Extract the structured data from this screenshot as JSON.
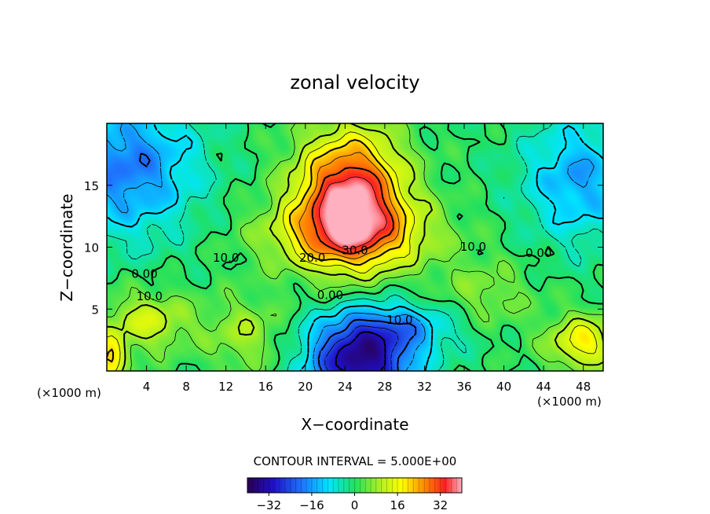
{
  "chart_data": {
    "type": "heatmap",
    "title": "zonal velocity",
    "xlabel": "X−coordinate",
    "ylabel": "Z−coordinate",
    "x_unit_left": "(×1000 m)",
    "x_unit_right": "(×1000 m)",
    "xlim": [
      0,
      50
    ],
    "ylim": [
      0,
      20
    ],
    "x_ticks": [
      4,
      8,
      12,
      16,
      20,
      24,
      28,
      32,
      36,
      40,
      44,
      48
    ],
    "x_tick_labels": [
      "4",
      "8",
      "12",
      "16",
      "20",
      "24",
      "28",
      "32",
      "36",
      "40",
      "44",
      "48"
    ],
    "y_ticks": [
      5,
      10,
      15
    ],
    "y_tick_labels": [
      "5",
      "10",
      "15"
    ],
    "contour_interval_text": "CONTOUR INTERVAL = 5.000E+00",
    "colorbar": {
      "range": [
        -40,
        40
      ],
      "ticks": [
        -32,
        -16,
        0,
        16,
        32
      ],
      "tick_labels": [
        "−32",
        "−16",
        "0",
        "16",
        "32"
      ]
    },
    "features": [
      {
        "type": "max",
        "x": 24.5,
        "z": 13.5,
        "value": 38
      },
      {
        "type": "min",
        "x": 25.5,
        "z": 1.0,
        "value": -34
      },
      {
        "type": "min",
        "x": 1.5,
        "z": 17.0,
        "value": -18
      },
      {
        "type": "min",
        "x": 47.5,
        "z": 16.0,
        "value": -14
      },
      {
        "type": "max",
        "x": 4.0,
        "z": 4.0,
        "value": 13
      },
      {
        "type": "max",
        "x": 47.5,
        "z": 2.5,
        "value": 18
      },
      {
        "type": "max",
        "x": 0.5,
        "z": 1.0,
        "value": 20
      }
    ],
    "contour_labels": [
      {
        "text": "0.00",
        "x": 3.8,
        "z": 7.8
      },
      {
        "text": "10.0",
        "x": 4.3,
        "z": 6.0
      },
      {
        "text": "10.0",
        "x": 12.0,
        "z": 9.1
      },
      {
        "text": "20.0",
        "x": 20.7,
        "z": 9.1
      },
      {
        "text": "30.0",
        "x": 25.0,
        "z": 9.7
      },
      {
        "text": "0.00",
        "x": 22.5,
        "z": 6.1
      },
      {
        "text": "10.0",
        "x": 29.5,
        "z": 4.1
      },
      {
        "text": "10.0",
        "x": 36.9,
        "z": 10.0
      },
      {
        "text": "0.00",
        "x": 43.5,
        "z": 9.5
      }
    ]
  }
}
